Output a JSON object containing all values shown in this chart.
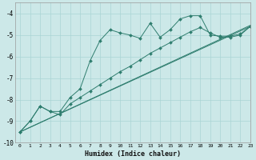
{
  "xlabel": "Humidex (Indice chaleur)",
  "bg_color": "#cce8e8",
  "grid_color": "#aad4d4",
  "line_color": "#2e7d6e",
  "xlim": [
    -0.5,
    23
  ],
  "ylim": [
    -10,
    -3.5
  ],
  "yticks": [
    -10,
    -9,
    -8,
    -7,
    -6,
    -5,
    -4
  ],
  "xticks": [
    0,
    1,
    2,
    3,
    4,
    5,
    6,
    7,
    8,
    9,
    10,
    11,
    12,
    13,
    14,
    15,
    16,
    17,
    18,
    19,
    20,
    21,
    22,
    23
  ],
  "series1_x": [
    0,
    1,
    2,
    3,
    4,
    5,
    6,
    7,
    8,
    9,
    10,
    11,
    12,
    13,
    14,
    15,
    16,
    17,
    18,
    19,
    20,
    21,
    22,
    23
  ],
  "series1_y": [
    -9.5,
    -9.0,
    -8.3,
    -8.55,
    -8.55,
    -7.9,
    -7.5,
    -6.2,
    -5.25,
    -4.75,
    -4.9,
    -5.0,
    -5.15,
    -4.45,
    -5.1,
    -4.75,
    -4.25,
    -4.1,
    -4.1,
    -5.0,
    -5.05,
    -5.05,
    -4.95,
    -4.6
  ],
  "series2_x": [
    0,
    1,
    2,
    3,
    4,
    5,
    6,
    7,
    8,
    9,
    10,
    11,
    12,
    13,
    14,
    15,
    16,
    17,
    18,
    19,
    20,
    21,
    22,
    23
  ],
  "series2_y": [
    -9.5,
    -9.0,
    -8.3,
    -8.55,
    -8.7,
    -8.2,
    -7.9,
    -7.6,
    -7.3,
    -7.0,
    -6.7,
    -6.45,
    -6.15,
    -5.85,
    -5.6,
    -5.35,
    -5.1,
    -4.85,
    -4.65,
    -4.9,
    -5.1,
    -5.1,
    -5.0,
    -4.6
  ],
  "series3_x": [
    0,
    23
  ],
  "series3_y": [
    -9.5,
    -4.6
  ],
  "series4_x": [
    0,
    23
  ],
  "series4_y": [
    -9.5,
    -4.55
  ]
}
